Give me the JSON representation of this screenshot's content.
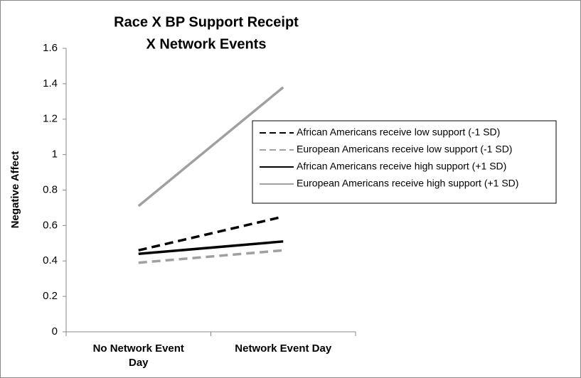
{
  "chart_data": {
    "type": "line",
    "title": [
      "Race X BP Support Receipt",
      "X Network Events"
    ],
    "ylabel": "Negative Affect",
    "categories": [
      "No Network Event Day",
      "Network Event Day"
    ],
    "series": [
      {
        "name": "African Americans receive low support (-1 SD)",
        "color": "#000000",
        "style": "dashed",
        "values": [
          0.46,
          0.65
        ]
      },
      {
        "name": "European Americans receive low support (-1 SD)",
        "color": "#a0a0a0",
        "style": "dashed",
        "values": [
          0.39,
          0.46
        ]
      },
      {
        "name": "African Americans receive high support (+1 SD)",
        "color": "#000000",
        "style": "solid",
        "values": [
          0.44,
          0.51
        ]
      },
      {
        "name": "European Americans receive high support (+1 SD)",
        "color": "#a0a0a0",
        "style": "solid",
        "values": [
          0.71,
          1.38
        ]
      }
    ],
    "ylim": [
      0,
      1.6
    ],
    "yticks": [
      0,
      0.2,
      0.4,
      0.6,
      0.8,
      1,
      1.2,
      1.4,
      1.6
    ],
    "legend": "right"
  }
}
